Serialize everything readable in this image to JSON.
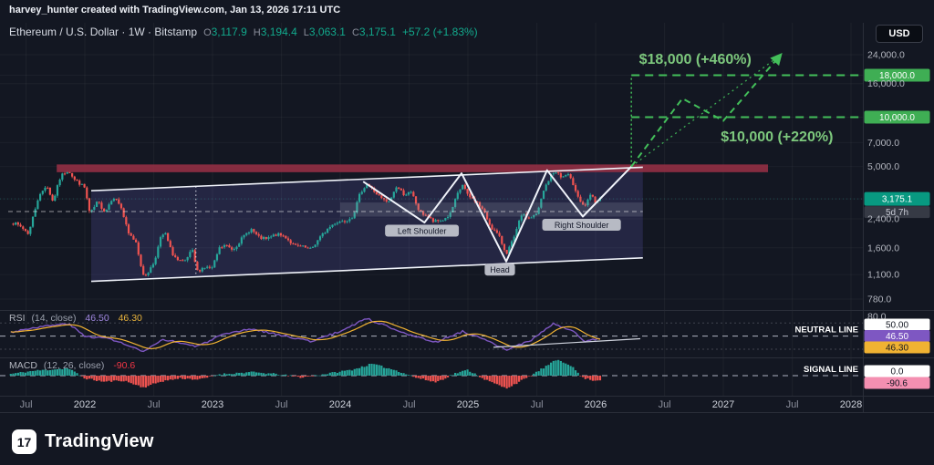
{
  "attribution": "harvey_hunter created with TradingView.com, Jan 13, 2026 17:11 UTC",
  "header": {
    "symbol_line": "Ethereum / U.S. Dollar · 1W · Bitstamp",
    "ohlc": {
      "o_label": "O",
      "o": "3,117.9",
      "h_label": "H",
      "h": "3,194.4",
      "l_label": "L",
      "l": "3,063.1",
      "c_label": "C",
      "c": "3,175.1",
      "change": "+57.2 (+1.83%)"
    },
    "currency_button": "USD"
  },
  "footer": {
    "brand": "TradingView",
    "logo_glyph": "17"
  },
  "last_price": {
    "value": "3,175.1",
    "countdown": "5d 7h"
  },
  "price_scale": [
    {
      "label": "24,000.0",
      "price": 24000,
      "kind": "plain"
    },
    {
      "label": "18,000.0",
      "price": 18000,
      "kind": "level"
    },
    {
      "label": "16,000.0",
      "price": 16000,
      "kind": "plain"
    },
    {
      "label": "10,000.0",
      "price": 10000,
      "kind": "level"
    },
    {
      "label": "7,000.0",
      "price": 7000,
      "kind": "plain"
    },
    {
      "label": "5,000.0",
      "price": 5000,
      "kind": "plain"
    },
    {
      "label": "3,175.1",
      "price": 3175.1,
      "kind": "last"
    },
    {
      "label": "2,400.0",
      "price": 2400,
      "kind": "plain"
    },
    {
      "label": "1,600.0",
      "price": 1600,
      "kind": "plain"
    },
    {
      "label": "1,100.0",
      "price": 1100,
      "kind": "plain"
    },
    {
      "label": "780.0",
      "price": 780,
      "kind": "plain"
    }
  ],
  "time_scale": [
    {
      "t": 2021.54,
      "label": "Jul",
      "kind": "month"
    },
    {
      "t": 2022.0,
      "label": "2022",
      "kind": "year"
    },
    {
      "t": 2022.54,
      "label": "Jul",
      "kind": "month"
    },
    {
      "t": 2023.0,
      "label": "2023",
      "kind": "year"
    },
    {
      "t": 2023.54,
      "label": "Jul",
      "kind": "month"
    },
    {
      "t": 2024.0,
      "label": "2024",
      "kind": "year"
    },
    {
      "t": 2024.54,
      "label": "Jul",
      "kind": "month"
    },
    {
      "t": 2025.0,
      "label": "2025",
      "kind": "year"
    },
    {
      "t": 2025.54,
      "label": "Jul",
      "kind": "month"
    },
    {
      "t": 2026.0,
      "label": "2026",
      "kind": "year"
    },
    {
      "t": 2026.54,
      "label": "Jul",
      "kind": "month"
    },
    {
      "t": 2027.0,
      "label": "2027",
      "kind": "year"
    },
    {
      "t": 2027.54,
      "label": "Jul",
      "kind": "month"
    },
    {
      "t": 2028.0,
      "label": "2028",
      "kind": "year"
    }
  ],
  "indicators": {
    "rsi": {
      "title": "RSI",
      "params": "(14, close)",
      "value": "46.50",
      "ma_value": "46.30",
      "axis_top": "80.0",
      "neutral_label": "NEUTRAL LINE",
      "neutral_badge": "50.00",
      "value_badge": "46.50",
      "ma_badge": "46.30"
    },
    "macd": {
      "title": "MACD",
      "params": "(12, 26, close)",
      "value": "-90.6",
      "signal_label": "SIGNAL LINE",
      "zero_badge": "0.0",
      "value_badge": "-90.6"
    }
  },
  "colors": {
    "up": "#26a69a",
    "down": "#ef5350",
    "accent_green": "#43bf5a",
    "target_text": "#7dc87d",
    "level_badge": "#3fae54",
    "rsi": "#7e57c2",
    "rsi_ma": "#f0b232",
    "last_badge": "#089981",
    "countdown_badge": "#363a45",
    "macd_neg_badge": "#f48fb1",
    "white_badge": "#ffffff",
    "red_band": "#8f2f43",
    "channel_fill": "rgba(118,110,220,0.18)",
    "channel_line": "#f0f3fa",
    "axis_text": "#b2b5be"
  },
  "chart_data": [
    {
      "type": "candlestick",
      "title": "Ethereum / U.S. Dollar, 1 week, Bitstamp (log price scale)",
      "ylim": [
        780,
        24000
      ],
      "ohlc_last": {
        "open": 3117.9,
        "high": 3194.4,
        "low": 3063.1,
        "close": 3175.1,
        "change": 57.2,
        "change_pct": 1.83
      },
      "close_anchors": [
        [
          2021.42,
          2300
        ],
        [
          2021.5,
          2150
        ],
        [
          2021.56,
          1950
        ],
        [
          2021.63,
          3150
        ],
        [
          2021.7,
          3900
        ],
        [
          2021.75,
          3050
        ],
        [
          2021.81,
          4350
        ],
        [
          2021.87,
          4800
        ],
        [
          2021.92,
          4150
        ],
        [
          2021.96,
          3950
        ],
        [
          2022.0,
          3700
        ],
        [
          2022.04,
          2550
        ],
        [
          2022.1,
          3050
        ],
        [
          2022.16,
          2650
        ],
        [
          2022.22,
          3300
        ],
        [
          2022.28,
          2900
        ],
        [
          2022.34,
          1950
        ],
        [
          2022.4,
          1750
        ],
        [
          2022.46,
          1060
        ],
        [
          2022.5,
          1150
        ],
        [
          2022.54,
          1300
        ],
        [
          2022.6,
          1900
        ],
        [
          2022.63,
          1950
        ],
        [
          2022.68,
          1500
        ],
        [
          2022.73,
          1330
        ],
        [
          2022.78,
          1300
        ],
        [
          2022.84,
          1550
        ],
        [
          2022.88,
          1150
        ],
        [
          2022.93,
          1220
        ],
        [
          2023.0,
          1200
        ],
        [
          2023.05,
          1580
        ],
        [
          2023.1,
          1660
        ],
        [
          2023.16,
          1560
        ],
        [
          2023.23,
          1820
        ],
        [
          2023.3,
          2090
        ],
        [
          2023.36,
          1850
        ],
        [
          2023.42,
          1800
        ],
        [
          2023.5,
          1930
        ],
        [
          2023.57,
          1870
        ],
        [
          2023.64,
          1640
        ],
        [
          2023.7,
          1620
        ],
        [
          2023.77,
          1560
        ],
        [
          2023.83,
          1800
        ],
        [
          2023.9,
          2080
        ],
        [
          2023.96,
          2280
        ],
        [
          2024.04,
          2350
        ],
        [
          2024.1,
          2500
        ],
        [
          2024.16,
          3500
        ],
        [
          2024.21,
          3950
        ],
        [
          2024.27,
          3500
        ],
        [
          2024.33,
          3150
        ],
        [
          2024.38,
          3000
        ],
        [
          2024.44,
          3780
        ],
        [
          2024.5,
          3400
        ],
        [
          2024.56,
          3450
        ],
        [
          2024.62,
          2650
        ],
        [
          2024.68,
          2500
        ],
        [
          2024.73,
          2300
        ],
        [
          2024.8,
          2350
        ],
        [
          2024.86,
          2550
        ],
        [
          2024.92,
          3400
        ],
        [
          2024.96,
          3900
        ],
        [
          2025.0,
          3300
        ],
        [
          2025.06,
          3100
        ],
        [
          2025.12,
          2700
        ],
        [
          2025.18,
          2150
        ],
        [
          2025.24,
          1900
        ],
        [
          2025.3,
          1480
        ],
        [
          2025.36,
          1820
        ],
        [
          2025.42,
          2550
        ],
        [
          2025.48,
          2430
        ],
        [
          2025.54,
          2550
        ],
        [
          2025.6,
          3700
        ],
        [
          2025.65,
          4400
        ],
        [
          2025.69,
          4700
        ],
        [
          2025.73,
          4280
        ],
        [
          2025.78,
          4480
        ],
        [
          2025.83,
          3850
        ],
        [
          2025.88,
          3050
        ],
        [
          2025.92,
          2850
        ],
        [
          2025.96,
          3380
        ],
        [
          2026.0,
          3020
        ],
        [
          2026.04,
          3175
        ]
      ],
      "drawings": {
        "resistance_band": {
          "t_start": 2021.78,
          "t_end": 2027.35,
          "price_top": 5150,
          "price_bottom": 4620
        },
        "trend_channel": {
          "upper": [
            [
              2022.05,
              3560
            ],
            [
              2026.37,
              4950
            ]
          ],
          "lower": [
            [
              2022.05,
              1000
            ],
            [
              2026.37,
              1390
            ]
          ]
        },
        "mid_dashed_price": {
          "price": 2660,
          "t_start": 2021.4,
          "t_end": 2026.37
        },
        "gray_zone": {
          "t_start": 2024.0,
          "t_end": 2026.37,
          "price_top": 3020,
          "price_bottom": 2480
        },
        "vertical_dotted_t": 2022.87,
        "head_shoulders": [
          [
            2024.18,
            4050
          ],
          [
            2024.66,
            2280
          ],
          [
            2024.95,
            4550
          ],
          [
            2025.3,
            1320
          ],
          [
            2025.62,
            4750
          ],
          [
            2025.9,
            2480
          ],
          [
            2026.28,
            5000
          ]
        ],
        "pattern_labels": [
          {
            "text": "Left Shoulder",
            "t": 2024.64,
            "price": 2020
          },
          {
            "text": "Head",
            "t": 2025.25,
            "price": 1170
          },
          {
            "text": "Right Shoulder",
            "t": 2025.89,
            "price": 2195
          }
        ],
        "targets": [
          {
            "price": 18000,
            "axis_label": "18,000.0",
            "callout": "$18,000 (+460%)",
            "callout_t": 2026.78,
            "callout_price": 22500,
            "t_start": 2026.28,
            "t_end": 2028.1
          },
          {
            "price": 10000,
            "axis_label": "10,000.0",
            "callout": "$10,000 (+220%)",
            "callout_t": 2027.42,
            "callout_price": 7600,
            "t_start": 2026.28,
            "t_end": 2028.1
          }
        ],
        "projection_zigzag": [
          [
            2026.28,
            5000
          ],
          [
            2026.68,
            13000
          ],
          [
            2027.0,
            9500
          ],
          [
            2027.45,
            24000
          ]
        ],
        "projection_dotted": [
          [
            2026.28,
            5000
          ],
          [
            2027.45,
            24000
          ]
        ],
        "breakout_vertical": {
          "t": 2026.28,
          "from": 5000,
          "to": 18000
        }
      }
    },
    {
      "type": "line",
      "name": "RSI (14)",
      "range": [
        0,
        100
      ],
      "neutral_level": 50,
      "current": 46.5,
      "ma_current": 46.3,
      "anchors": [
        [
          2021.42,
          56
        ],
        [
          2021.6,
          63
        ],
        [
          2021.87,
          69
        ],
        [
          2022.0,
          50
        ],
        [
          2022.2,
          46
        ],
        [
          2022.46,
          26
        ],
        [
          2022.62,
          45
        ],
        [
          2022.88,
          34
        ],
        [
          2023.05,
          50
        ],
        [
          2023.3,
          61
        ],
        [
          2023.5,
          53
        ],
        [
          2023.77,
          42
        ],
        [
          2024.0,
          57
        ],
        [
          2024.2,
          77
        ],
        [
          2024.45,
          59
        ],
        [
          2024.62,
          47
        ],
        [
          2024.75,
          41
        ],
        [
          2024.96,
          57
        ],
        [
          2025.1,
          47
        ],
        [
          2025.3,
          29
        ],
        [
          2025.5,
          44
        ],
        [
          2025.67,
          69
        ],
        [
          2025.83,
          56
        ],
        [
          2025.92,
          42
        ],
        [
          2026.04,
          46.5
        ]
      ],
      "trendline": [
        [
          2025.2,
          33
        ],
        [
          2026.35,
          46
        ]
      ]
    },
    {
      "type": "bar",
      "name": "MACD histogram (12, 26, close)",
      "zero_level": 0,
      "current": -90.6,
      "anchors": [
        [
          2021.42,
          40
        ],
        [
          2021.6,
          110
        ],
        [
          2021.87,
          170
        ],
        [
          2022.0,
          -60
        ],
        [
          2022.15,
          -140
        ],
        [
          2022.3,
          -110
        ],
        [
          2022.46,
          -270
        ],
        [
          2022.6,
          -130
        ],
        [
          2022.75,
          -60
        ],
        [
          2022.9,
          -90
        ],
        [
          2023.05,
          30
        ],
        [
          2023.3,
          80
        ],
        [
          2023.5,
          35
        ],
        [
          2023.7,
          -40
        ],
        [
          2023.9,
          45
        ],
        [
          2024.1,
          140
        ],
        [
          2024.25,
          270
        ],
        [
          2024.45,
          110
        ],
        [
          2024.6,
          -50
        ],
        [
          2024.75,
          -150
        ],
        [
          2024.9,
          50
        ],
        [
          2025.0,
          130
        ],
        [
          2025.15,
          -110
        ],
        [
          2025.3,
          -290
        ],
        [
          2025.45,
          -70
        ],
        [
          2025.6,
          190
        ],
        [
          2025.7,
          370
        ],
        [
          2025.8,
          250
        ],
        [
          2025.9,
          -50
        ],
        [
          2026.0,
          -115
        ],
        [
          2026.04,
          -90.6
        ]
      ]
    }
  ]
}
